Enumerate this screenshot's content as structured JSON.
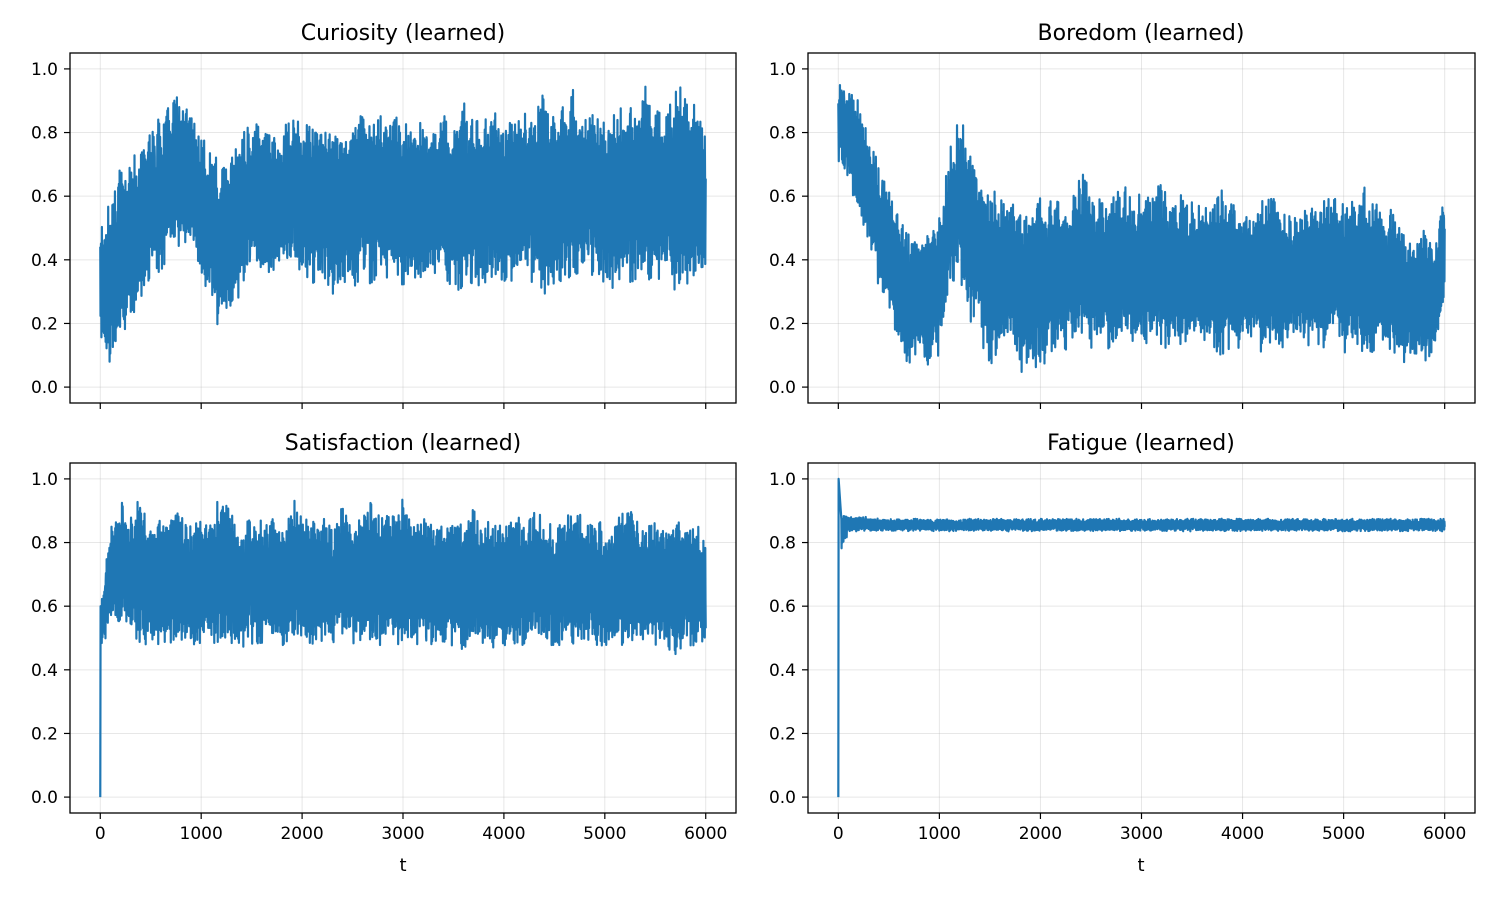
{
  "chart_data": [
    {
      "type": "line",
      "title": "Curiosity (learned)",
      "xlabel": "",
      "ylabel": "",
      "xlim": [
        -300,
        6300
      ],
      "ylim": [
        -0.05,
        1.05
      ],
      "xticks": [
        0,
        1000,
        2000,
        3000,
        4000,
        5000,
        6000
      ],
      "xtick_labels_visible": false,
      "yticks": [
        "0.0",
        "0.2",
        "0.4",
        "0.6",
        "0.8",
        "1.0"
      ],
      "grid": true,
      "color": "#1f77b4",
      "envelope": {
        "x": [
          0,
          100,
          200,
          300,
          400,
          500,
          600,
          700,
          800,
          900,
          1000,
          1100,
          1200,
          1300,
          1400,
          1500,
          1600,
          1700,
          1800,
          1900,
          2000,
          2100,
          2200,
          2300,
          2400,
          2500,
          2600,
          2700,
          2800,
          2900,
          3000,
          3100,
          3200,
          3300,
          3400,
          3500,
          3600,
          3700,
          3800,
          3900,
          4000,
          4100,
          4200,
          4300,
          4400,
          4500,
          4600,
          4700,
          4800,
          4900,
          5000,
          5100,
          5200,
          5300,
          5400,
          5500,
          5600,
          5700,
          5800,
          5900,
          6000
        ],
        "lower": [
          0.15,
          0.05,
          0.12,
          0.2,
          0.25,
          0.32,
          0.35,
          0.4,
          0.45,
          0.42,
          0.3,
          0.25,
          0.15,
          0.2,
          0.3,
          0.35,
          0.3,
          0.35,
          0.4,
          0.35,
          0.33,
          0.3,
          0.35,
          0.25,
          0.3,
          0.28,
          0.35,
          0.3,
          0.33,
          0.35,
          0.3,
          0.35,
          0.3,
          0.33,
          0.35,
          0.3,
          0.28,
          0.32,
          0.3,
          0.35,
          0.3,
          0.32,
          0.35,
          0.3,
          0.28,
          0.3,
          0.35,
          0.3,
          0.32,
          0.35,
          0.3,
          0.28,
          0.3,
          0.33,
          0.3,
          0.3,
          0.35,
          0.3,
          0.28,
          0.3,
          0.35
        ],
        "upper": [
          0.52,
          0.6,
          0.7,
          0.72,
          0.75,
          0.82,
          0.85,
          0.9,
          0.95,
          0.9,
          0.8,
          0.78,
          0.7,
          0.78,
          0.82,
          0.85,
          0.85,
          0.82,
          0.8,
          0.88,
          0.85,
          0.82,
          0.85,
          0.8,
          0.85,
          0.82,
          0.9,
          0.85,
          0.88,
          0.9,
          0.85,
          0.88,
          0.85,
          0.82,
          0.88,
          0.85,
          0.9,
          0.88,
          0.85,
          0.87,
          0.85,
          0.88,
          0.9,
          0.85,
          0.95,
          0.88,
          0.9,
          0.95,
          0.88,
          0.9,
          0.85,
          0.88,
          0.92,
          0.9,
          1.0,
          0.9,
          0.88,
          0.95,
          0.98,
          0.9,
          0.8
        ]
      }
    },
    {
      "type": "line",
      "title": "Boredom (learned)",
      "xlabel": "",
      "ylabel": "",
      "xlim": [
        -300,
        6300
      ],
      "ylim": [
        -0.05,
        1.05
      ],
      "xticks": [
        0,
        1000,
        2000,
        3000,
        4000,
        5000,
        6000
      ],
      "xtick_labels_visible": false,
      "yticks": [
        "0.0",
        "0.2",
        "0.4",
        "0.6",
        "0.8",
        "1.0"
      ],
      "grid": true,
      "color": "#1f77b4",
      "envelope": {
        "x": [
          0,
          100,
          200,
          300,
          400,
          500,
          600,
          700,
          800,
          900,
          1000,
          1100,
          1200,
          1300,
          1400,
          1500,
          1600,
          1700,
          1800,
          1900,
          2000,
          2100,
          2200,
          2300,
          2400,
          2500,
          2600,
          2700,
          2800,
          2900,
          3000,
          3100,
          3200,
          3300,
          3400,
          3500,
          3600,
          3700,
          3800,
          3900,
          4000,
          4100,
          4200,
          4300,
          4400,
          4500,
          4600,
          4700,
          4800,
          4900,
          5000,
          5100,
          5200,
          5300,
          5400,
          5500,
          5600,
          5700,
          5800,
          5900,
          6000
        ],
        "lower": [
          0.7,
          0.65,
          0.5,
          0.45,
          0.3,
          0.25,
          0.1,
          0.05,
          0.1,
          0.05,
          0.1,
          0.3,
          0.35,
          0.2,
          0.15,
          0.05,
          0.1,
          0.15,
          0.05,
          0.02,
          0.05,
          0.1,
          0.1,
          0.12,
          0.15,
          0.1,
          0.15,
          0.1,
          0.15,
          0.12,
          0.1,
          0.15,
          0.1,
          0.12,
          0.1,
          0.15,
          0.1,
          0.12,
          0.08,
          0.12,
          0.1,
          0.15,
          0.1,
          0.12,
          0.1,
          0.15,
          0.1,
          0.12,
          0.1,
          0.15,
          0.1,
          0.12,
          0.05,
          0.1,
          0.12,
          0.1,
          0.05,
          0.1,
          0.05,
          0.08,
          0.25
        ],
        "upper": [
          0.96,
          0.95,
          0.9,
          0.8,
          0.72,
          0.62,
          0.55,
          0.48,
          0.48,
          0.5,
          0.55,
          0.75,
          0.85,
          0.8,
          0.65,
          0.6,
          0.65,
          0.6,
          0.55,
          0.58,
          0.65,
          0.6,
          0.62,
          0.6,
          0.68,
          0.65,
          0.6,
          0.62,
          0.65,
          0.6,
          0.62,
          0.65,
          0.68,
          0.6,
          0.62,
          0.6,
          0.58,
          0.6,
          0.62,
          0.6,
          0.58,
          0.55,
          0.6,
          0.62,
          0.58,
          0.55,
          0.6,
          0.58,
          0.62,
          0.6,
          0.58,
          0.62,
          0.65,
          0.6,
          0.55,
          0.58,
          0.5,
          0.48,
          0.5,
          0.45,
          0.62
        ]
      }
    },
    {
      "type": "line",
      "title": "Satisfaction (learned)",
      "xlabel": "t",
      "ylabel": "",
      "xlim": [
        -300,
        6300
      ],
      "ylim": [
        -0.05,
        1.05
      ],
      "xticks": [
        0,
        1000,
        2000,
        3000,
        4000,
        5000,
        6000
      ],
      "xtick_labels_visible": true,
      "yticks": [
        "0.0",
        "0.2",
        "0.4",
        "0.6",
        "0.8",
        "1.0"
      ],
      "grid": true,
      "color": "#1f77b4",
      "start": [
        0.0,
        0.6
      ],
      "envelope": {
        "x": [
          10,
          100,
          200,
          300,
          400,
          500,
          600,
          700,
          800,
          900,
          1000,
          1100,
          1200,
          1300,
          1400,
          1500,
          1600,
          1700,
          1800,
          1900,
          2000,
          2100,
          2200,
          2300,
          2400,
          2500,
          2600,
          2700,
          2800,
          2900,
          3000,
          3100,
          3200,
          3300,
          3400,
          3500,
          3600,
          3700,
          3800,
          3900,
          4000,
          4100,
          4200,
          4300,
          4400,
          4500,
          4600,
          4700,
          4800,
          4900,
          5000,
          5100,
          5200,
          5300,
          5400,
          5500,
          5600,
          5700,
          5800,
          5900,
          6000
        ],
        "lower": [
          0.45,
          0.55,
          0.52,
          0.5,
          0.48,
          0.47,
          0.46,
          0.47,
          0.48,
          0.47,
          0.46,
          0.47,
          0.48,
          0.47,
          0.46,
          0.47,
          0.46,
          0.47,
          0.46,
          0.47,
          0.46,
          0.47,
          0.46,
          0.47,
          0.48,
          0.47,
          0.46,
          0.47,
          0.46,
          0.47,
          0.46,
          0.47,
          0.46,
          0.47,
          0.48,
          0.47,
          0.46,
          0.47,
          0.46,
          0.47,
          0.46,
          0.47,
          0.46,
          0.47,
          0.48,
          0.47,
          0.46,
          0.47,
          0.46,
          0.47,
          0.46,
          0.47,
          0.46,
          0.47,
          0.46,
          0.47,
          0.46,
          0.44,
          0.46,
          0.47,
          0.48
        ],
        "upper": [
          0.62,
          0.85,
          0.95,
          0.9,
          0.95,
          0.85,
          0.9,
          0.95,
          0.9,
          0.85,
          0.9,
          0.85,
          1.0,
          0.9,
          0.85,
          0.9,
          0.88,
          0.9,
          0.85,
          0.95,
          0.9,
          0.88,
          0.9,
          0.85,
          0.92,
          0.88,
          0.9,
          0.95,
          0.88,
          0.9,
          0.95,
          0.88,
          0.9,
          0.85,
          0.88,
          0.9,
          0.85,
          0.92,
          0.88,
          0.9,
          0.85,
          0.88,
          0.92,
          0.9,
          0.88,
          0.85,
          0.9,
          0.95,
          0.88,
          0.9,
          0.85,
          0.88,
          0.92,
          0.9,
          0.85,
          0.9,
          0.85,
          0.88,
          0.87,
          0.88,
          0.8
        ]
      }
    },
    {
      "type": "line",
      "title": "Fatigue (learned)",
      "xlabel": "t",
      "ylabel": "",
      "xlim": [
        -300,
        6300
      ],
      "ylim": [
        -0.05,
        1.05
      ],
      "xticks": [
        0,
        1000,
        2000,
        3000,
        4000,
        5000,
        6000
      ],
      "xtick_labels_visible": true,
      "yticks": [
        "0.0",
        "0.2",
        "0.4",
        "0.6",
        "0.8",
        "1.0"
      ],
      "grid": true,
      "color": "#1f77b4",
      "start": [
        0.0,
        1.0
      ],
      "envelope": {
        "x": [
          30,
          100,
          500,
          1000,
          2000,
          3000,
          4000,
          5000,
          6000
        ],
        "lower": [
          0.75,
          0.835,
          0.835,
          0.835,
          0.835,
          0.835,
          0.835,
          0.835,
          0.835
        ],
        "upper": [
          0.9,
          0.885,
          0.875,
          0.875,
          0.875,
          0.875,
          0.875,
          0.875,
          0.875
        ]
      }
    }
  ]
}
